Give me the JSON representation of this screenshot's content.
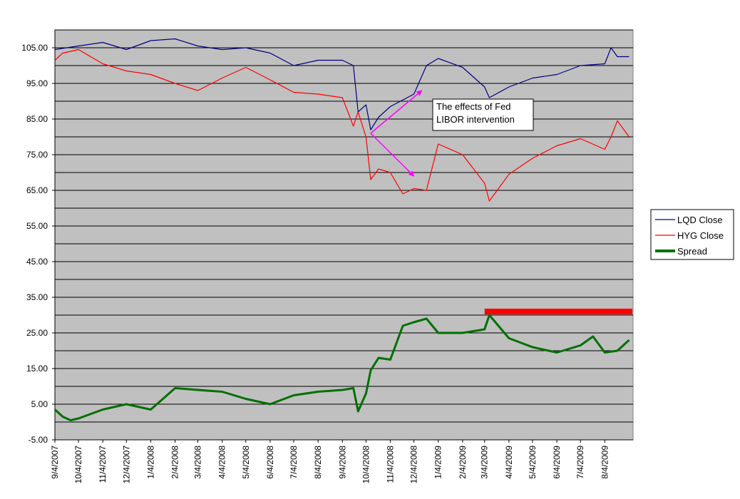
{
  "chart_data": {
    "type": "line",
    "title": "",
    "xlabel": "",
    "ylabel": "",
    "ylim": [
      -5,
      110
    ],
    "y_ticks": [
      "-5.00",
      "5.00",
      "15.00",
      "25.00",
      "35.00",
      "45.00",
      "55.00",
      "65.00",
      "75.00",
      "85.00",
      "95.00",
      "105.00"
    ],
    "x_tick_labels": [
      "9/4/2007",
      "10/4/2007",
      "11/4/2007",
      "12/4/2007",
      "1/4/2008",
      "2/4/2008",
      "3/4/2008",
      "4/4/2008",
      "5/4/2008",
      "6/4/2008",
      "7/4/2008",
      "8/4/2008",
      "9/4/2008",
      "10/4/2008",
      "11/4/2008",
      "12/4/2008",
      "1/4/2009",
      "2/4/2009",
      "3/4/2009",
      "4/4/2009",
      "5/4/2009",
      "6/4/2009",
      "7/4/2009",
      "8/4/2009"
    ],
    "grid": true,
    "legend_position": "right",
    "plot_background": "#c0c0c0",
    "series": [
      {
        "name": "LQD Close",
        "color": "#000080",
        "x": [
          "9/4/2007",
          "10/4/2007",
          "11/4/2007",
          "12/4/2007",
          "1/4/2008",
          "2/4/2008",
          "3/4/2008",
          "4/4/2008",
          "5/4/2008",
          "6/4/2008",
          "7/4/2008",
          "8/4/2008",
          "9/4/2008",
          "9/18/2008",
          "9/24/2008",
          "10/4/2008",
          "10/10/2008",
          "10/20/2008",
          "11/4/2008",
          "12/4/2008",
          "12/20/2008",
          "1/4/2009",
          "2/4/2009",
          "3/4/2009",
          "3/10/2009",
          "4/4/2009",
          "5/4/2009",
          "6/4/2009",
          "7/4/2009",
          "8/4/2009",
          "8/12/2009",
          "8/20/2009",
          "9/4/2009"
        ],
        "values": [
          104.5,
          105.5,
          106.5,
          104.5,
          107.0,
          107.5,
          105.5,
          104.5,
          105.0,
          103.5,
          100.0,
          101.5,
          101.5,
          100.0,
          87.0,
          89.0,
          82.0,
          85.5,
          88.5,
          92.0,
          100.0,
          102.0,
          99.5,
          94.0,
          91.0,
          94.0,
          96.5,
          97.5,
          100.0,
          100.5,
          105.0,
          102.5,
          102.5
        ]
      },
      {
        "name": "HYG Close",
        "color": "#ff0000",
        "x": [
          "9/4/2007",
          "9/14/2007",
          "10/4/2007",
          "11/4/2007",
          "12/4/2007",
          "1/4/2008",
          "2/4/2008",
          "3/4/2008",
          "4/4/2008",
          "5/4/2008",
          "6/4/2008",
          "7/4/2008",
          "8/4/2008",
          "9/4/2008",
          "9/18/2008",
          "9/24/2008",
          "10/4/2008",
          "10/10/2008",
          "10/20/2008",
          "11/4/2008",
          "11/20/2008",
          "12/4/2008",
          "12/20/2008",
          "1/4/2009",
          "2/4/2009",
          "3/4/2009",
          "3/10/2009",
          "4/4/2009",
          "5/4/2009",
          "6/4/2009",
          "7/4/2009",
          "8/4/2009",
          "8/12/2009",
          "8/20/2009",
          "9/4/2009"
        ],
        "values": [
          101.5,
          103.5,
          104.5,
          100.5,
          98.5,
          97.5,
          95.0,
          93.0,
          96.5,
          99.5,
          96.0,
          92.5,
          92.0,
          91.0,
          83.0,
          87.0,
          80.0,
          68.0,
          71.0,
          70.0,
          64.0,
          65.5,
          65.0,
          78.0,
          75.0,
          67.0,
          62.0,
          69.5,
          74.0,
          77.5,
          79.5,
          76.5,
          80.0,
          84.5,
          80.0
        ]
      },
      {
        "name": "Spread",
        "color": "#007000",
        "x": [
          "9/4/2007",
          "9/14/2007",
          "9/24/2007",
          "10/4/2007",
          "11/4/2007",
          "12/4/2007",
          "1/4/2008",
          "2/4/2008",
          "3/4/2008",
          "4/4/2008",
          "5/4/2008",
          "6/4/2008",
          "7/4/2008",
          "8/4/2008",
          "9/4/2008",
          "9/18/2008",
          "9/24/2008",
          "10/4/2008",
          "10/10/2008",
          "10/20/2008",
          "11/4/2008",
          "11/20/2008",
          "12/4/2008",
          "12/20/2008",
          "1/4/2009",
          "2/4/2009",
          "3/4/2009",
          "3/10/2009",
          "4/4/2009",
          "5/4/2009",
          "6/4/2009",
          "7/4/2009",
          "7/20/2009",
          "8/4/2009",
          "8/20/2009",
          "9/4/2009"
        ],
        "values": [
          3.5,
          1.5,
          0.5,
          1.0,
          3.5,
          5.0,
          3.5,
          9.5,
          9.0,
          8.5,
          6.5,
          5.0,
          7.5,
          8.5,
          9.0,
          9.5,
          3.0,
          8.0,
          14.5,
          18.0,
          17.5,
          27.0,
          28.0,
          29.0,
          25.0,
          25.0,
          26.0,
          30.0,
          23.5,
          21.0,
          19.5,
          21.5,
          24.0,
          19.5,
          20.0,
          23.0
        ]
      }
    ],
    "annotations": [
      {
        "text_lines": [
          "The effects of Fed",
          "LIBOR intervention"
        ],
        "arrow_color": "#ff00ff",
        "arrow_from": {
          "x": "10/10/2008",
          "y": 81
        },
        "arrow_targets": [
          {
            "x": "12/14/2008",
            "y": 93
          },
          {
            "x": "12/4/2008",
            "y": 69
          }
        ]
      }
    ],
    "reference_line": {
      "color": "#ff0000",
      "y": 31,
      "x_start": "3/4/2009",
      "x_end": "9/8/2009"
    }
  }
}
